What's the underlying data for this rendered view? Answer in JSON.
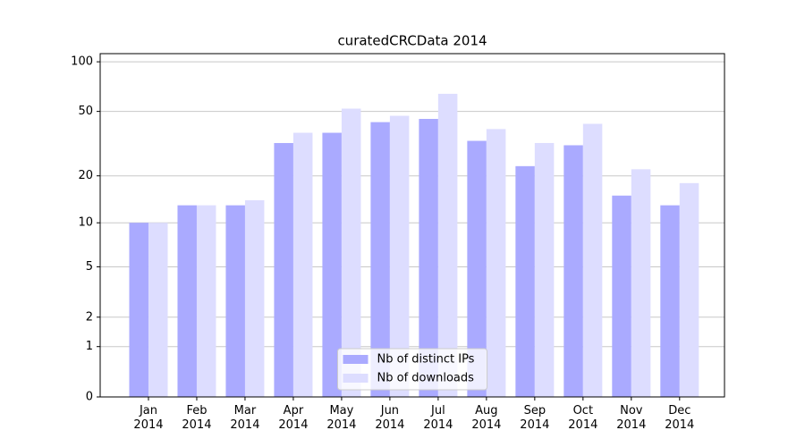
{
  "chart_data": {
    "type": "bar",
    "title": "curatedCRCData 2014",
    "categories": [
      "Jan 2014",
      "Feb 2014",
      "Mar 2014",
      "Apr 2014",
      "May 2014",
      "Jun 2014",
      "Jul 2014",
      "Aug 2014",
      "Sep 2014",
      "Oct 2014",
      "Nov 2014",
      "Dec 2014"
    ],
    "series": [
      {
        "name": "Nb of distinct IPs",
        "color": "#aaaaff",
        "values": [
          10,
          13,
          13,
          32,
          37,
          43,
          45,
          33,
          23,
          31,
          15,
          13
        ]
      },
      {
        "name": "Nb of downloads",
        "color": "#ddddff",
        "values": [
          10,
          13,
          14,
          37,
          52,
          47,
          64,
          39,
          32,
          42,
          22,
          18
        ]
      }
    ],
    "yscale": "log1p",
    "ylim": [
      0,
      112
    ],
    "yticks": [
      0,
      1,
      2,
      5,
      10,
      20,
      50,
      100
    ],
    "grid": true,
    "legend": "lower center"
  }
}
